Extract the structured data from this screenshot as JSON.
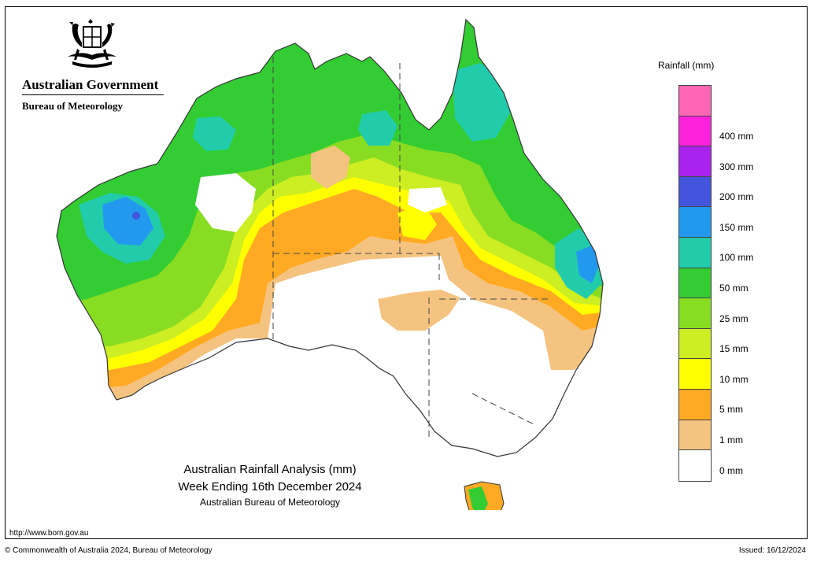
{
  "header": {
    "gov_title": "Australian Government",
    "bureau_title": "Bureau of Meteorology"
  },
  "legend": {
    "title": "Rainfall (mm)",
    "entries": [
      {
        "label": "",
        "color": "#ff66b3"
      },
      {
        "label": "400 mm",
        "color": "#ff22dd"
      },
      {
        "label": "300 mm",
        "color": "#aa22ee"
      },
      {
        "label": "200 mm",
        "color": "#4455dd"
      },
      {
        "label": "150 mm",
        "color": "#2299ee"
      },
      {
        "label": "100 mm",
        "color": "#22ccaa"
      },
      {
        "label": "50 mm",
        "color": "#33cc33"
      },
      {
        "label": "25 mm",
        "color": "#88dd22"
      },
      {
        "label": "15 mm",
        "color": "#ccee22"
      },
      {
        "label": "10 mm",
        "color": "#ffff00"
      },
      {
        "label": "5 mm",
        "color": "#ffaa22"
      },
      {
        "label": "1 mm",
        "color": "#f5c380"
      },
      {
        "label": "0 mm",
        "color": "#ffffff"
      }
    ]
  },
  "caption": {
    "line1": "Australian Rainfall Analysis (mm)",
    "line2": "Week Ending 16th December 2024",
    "line3": "Australian Bureau of Meteorology"
  },
  "footer": {
    "url": "http://www.bom.gov.au",
    "copyright": "© Commonwealth of Australia 2024, Bureau of Meteorology",
    "issued": "Issued: 16/12/2024"
  }
}
